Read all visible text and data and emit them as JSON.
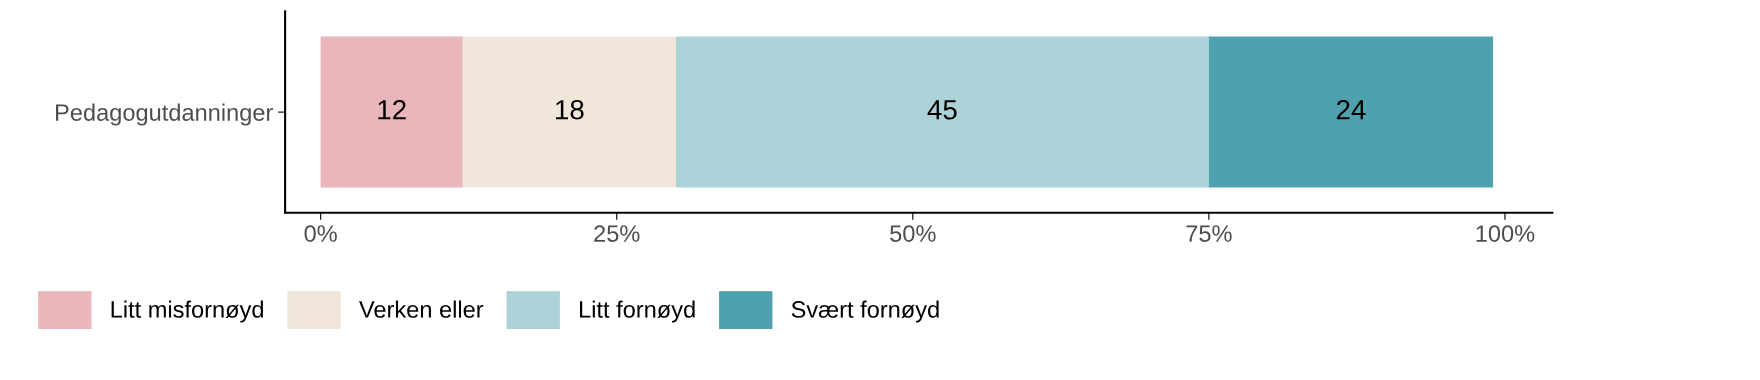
{
  "chart_data": {
    "type": "bar",
    "orientation": "horizontal",
    "stacked": true,
    "categories": [
      "Pedagogutdanninger"
    ],
    "series": [
      {
        "name": "Litt misfornøyd",
        "color": "#e8b6bb",
        "values": [
          12
        ]
      },
      {
        "name": "Verken eller",
        "color": "#f0e6da",
        "values": [
          18
        ]
      },
      {
        "name": "Litt fornøyd",
        "color": "#acd2d8",
        "values": [
          45
        ]
      },
      {
        "name": "Svært fornøyd",
        "color": "#4fa1af",
        "values": [
          24
        ]
      }
    ],
    "xlim": [
      -3,
      104
    ],
    "xticks": [
      {
        "value": 0,
        "label": "0%"
      },
      {
        "value": 25,
        "label": "25%"
      },
      {
        "value": 50,
        "label": "50%"
      },
      {
        "value": 75,
        "label": "75%"
      },
      {
        "value": 100,
        "label": "100%"
      }
    ],
    "data_labels": true,
    "legend": "bottom",
    "grid": false
  }
}
